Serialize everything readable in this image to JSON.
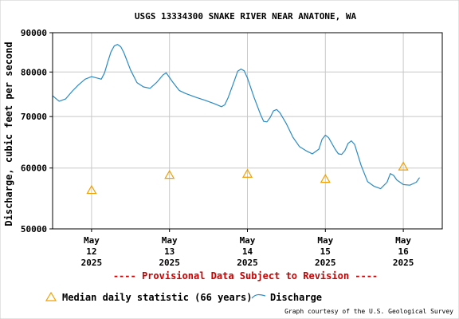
{
  "chart_data": {
    "type": "line",
    "title": "USGS 13334300 SNAKE RIVER NEAR ANATONE, WA",
    "ylabel": "Discharge, cubic feet per second",
    "xlabel": "",
    "ylim": [
      50000,
      90000
    ],
    "yscale": "log",
    "grid": true,
    "yticks": [
      {
        "value": 50000,
        "label": "50000"
      },
      {
        "value": 60000,
        "label": "60000"
      },
      {
        "value": 70000,
        "label": "70000"
      },
      {
        "value": 80000,
        "label": "80000"
      },
      {
        "value": 90000,
        "label": "90000"
      }
    ],
    "xlim": [
      "2025-05-11T12:00",
      "2025-05-16T12:00"
    ],
    "xticks": [
      {
        "date": "2025-05-12T00:00",
        "line1": "May",
        "line2": "12",
        "line3": "2025"
      },
      {
        "date": "2025-05-13T00:00",
        "line1": "May",
        "line2": "13",
        "line3": "2025"
      },
      {
        "date": "2025-05-14T00:00",
        "line1": "May",
        "line2": "14",
        "line3": "2025"
      },
      {
        "date": "2025-05-15T00:00",
        "line1": "May",
        "line2": "15",
        "line3": "2025"
      },
      {
        "date": "2025-05-16T00:00",
        "line1": "May",
        "line2": "16",
        "line3": "2025"
      }
    ],
    "series": [
      {
        "name": "Discharge",
        "color": "#2a8ac4",
        "points": [
          [
            "2025-05-11T12:00",
            74500
          ],
          [
            "2025-05-11T14:00",
            73300
          ],
          [
            "2025-05-11T16:00",
            73800
          ],
          [
            "2025-05-11T18:00",
            75500
          ],
          [
            "2025-05-11T20:00",
            77000
          ],
          [
            "2025-05-11T22:00",
            78300
          ],
          [
            "2025-05-12T00:00",
            78900
          ],
          [
            "2025-05-12T02:00",
            78500
          ],
          [
            "2025-05-12T03:00",
            78300
          ],
          [
            "2025-05-12T04:00",
            79800
          ],
          [
            "2025-05-12T05:00",
            82500
          ],
          [
            "2025-05-12T06:00",
            85000
          ],
          [
            "2025-05-12T07:00",
            86500
          ],
          [
            "2025-05-12T08:00",
            86900
          ],
          [
            "2025-05-12T09:00",
            86300
          ],
          [
            "2025-05-12T10:00",
            84700
          ],
          [
            "2025-05-12T12:00",
            80500
          ],
          [
            "2025-05-12T14:00",
            77500
          ],
          [
            "2025-05-12T16:00",
            76500
          ],
          [
            "2025-05-12T18:00",
            76200
          ],
          [
            "2025-05-12T20:00",
            77500
          ],
          [
            "2025-05-12T22:00",
            79300
          ],
          [
            "2025-05-12T23:00",
            79800
          ],
          [
            "2025-05-13T01:00",
            77600
          ],
          [
            "2025-05-13T03:00",
            75700
          ],
          [
            "2025-05-13T05:00",
            75000
          ],
          [
            "2025-05-13T08:00",
            74200
          ],
          [
            "2025-05-13T11:00",
            73500
          ],
          [
            "2025-05-13T14:00",
            72700
          ],
          [
            "2025-05-13T16:00",
            72100
          ],
          [
            "2025-05-13T17:00",
            72500
          ],
          [
            "2025-05-13T18:00",
            74000
          ],
          [
            "2025-05-13T20:00",
            78000
          ],
          [
            "2025-05-13T21:00",
            80200
          ],
          [
            "2025-05-13T22:00",
            80700
          ],
          [
            "2025-05-13T23:00",
            80300
          ],
          [
            "2025-05-14T00:00",
            78600
          ],
          [
            "2025-05-14T02:00",
            74200
          ],
          [
            "2025-05-14T04:00",
            70500
          ],
          [
            "2025-05-14T05:00",
            69000
          ],
          [
            "2025-05-14T06:00",
            68900
          ],
          [
            "2025-05-14T07:00",
            69800
          ],
          [
            "2025-05-14T08:00",
            71200
          ],
          [
            "2025-05-14T09:00",
            71500
          ],
          [
            "2025-05-14T10:00",
            70800
          ],
          [
            "2025-05-14T12:00",
            68500
          ],
          [
            "2025-05-14T14:00",
            65800
          ],
          [
            "2025-05-14T16:00",
            64000
          ],
          [
            "2025-05-14T18:00",
            63200
          ],
          [
            "2025-05-14T20:00",
            62600
          ],
          [
            "2025-05-14T22:00",
            63500
          ],
          [
            "2025-05-14T23:00",
            65400
          ],
          [
            "2025-05-15T00:00",
            66200
          ],
          [
            "2025-05-15T01:00",
            65700
          ],
          [
            "2025-05-15T03:00",
            63500
          ],
          [
            "2025-05-15T04:00",
            62600
          ],
          [
            "2025-05-15T05:00",
            62500
          ],
          [
            "2025-05-15T06:00",
            63200
          ],
          [
            "2025-05-15T07:00",
            64600
          ],
          [
            "2025-05-15T08:00",
            65100
          ],
          [
            "2025-05-15T09:00",
            64400
          ],
          [
            "2025-05-15T11:00",
            60500
          ],
          [
            "2025-05-15T13:00",
            57600
          ],
          [
            "2025-05-15T15:00",
            56800
          ],
          [
            "2025-05-15T17:00",
            56400
          ],
          [
            "2025-05-15T19:00",
            57500
          ],
          [
            "2025-05-15T20:00",
            59000
          ],
          [
            "2025-05-15T21:00",
            58700
          ],
          [
            "2025-05-15T22:00",
            57900
          ],
          [
            "2025-05-16T00:00",
            57100
          ],
          [
            "2025-05-16T02:00",
            57000
          ],
          [
            "2025-05-16T04:00",
            57500
          ],
          [
            "2025-05-16T05:00",
            58300
          ]
        ]
      }
    ],
    "markers": {
      "name": "Median daily statistic (66 years)",
      "color": "#f0a000",
      "shape": "triangle",
      "points": [
        [
          "2025-05-12T00:00",
          56200
        ],
        [
          "2025-05-13T00:00",
          58800
        ],
        [
          "2025-05-14T00:00",
          59000
        ],
        [
          "2025-05-15T00:00",
          58100
        ],
        [
          "2025-05-16T00:00",
          60300
        ]
      ]
    },
    "annotation": "---- Provisional Data Subject to Revision ----",
    "annotation_color": "#cc0000",
    "credit": "Graph courtesy of the U.S. Geological Survey",
    "legend": {
      "placement": "bottom",
      "median_label": "Median daily statistic (66 years)",
      "discharge_label": "Discharge"
    }
  }
}
